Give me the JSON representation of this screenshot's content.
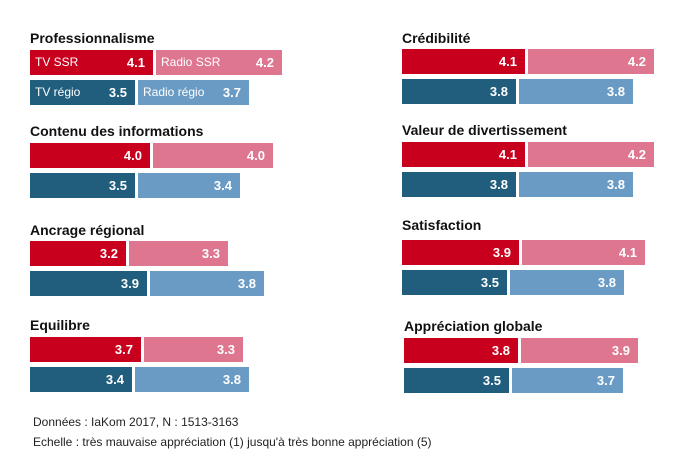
{
  "colors": {
    "tv_ssr": "#c8001e",
    "radio_ssr": "#de7690",
    "tv_regio": "#215e7e",
    "radio_regio": "#6a9bc5"
  },
  "chart_data": {
    "type": "bar",
    "scale": [
      1,
      5
    ],
    "legend": {
      "tv_ssr": "TV SSR",
      "radio_ssr": "Radio SSR",
      "tv_regio": "TV régio",
      "radio_regio": "Radio régio"
    },
    "panels": [
      {
        "title": "Professionnalisme",
        "tv_ssr": "4.1",
        "radio_ssr": "4.2",
        "tv_regio": "3.5",
        "radio_regio": "3.7"
      },
      {
        "title": "Contenu des informations",
        "tv_ssr": "4.0",
        "radio_ssr": "4.0",
        "tv_regio": "3.5",
        "radio_regio": "3.4"
      },
      {
        "title": "Ancrage régional",
        "tv_ssr": "3.2",
        "radio_ssr": "3.3",
        "tv_regio": "3.9",
        "radio_regio": "3.8"
      },
      {
        "title": "Equilibre",
        "tv_ssr": "3.7",
        "radio_ssr": "3.3",
        "tv_regio": "3.4",
        "radio_regio": "3.8"
      },
      {
        "title": "Crédibilité",
        "tv_ssr": "4.1",
        "radio_ssr": "4.2",
        "tv_regio": "3.8",
        "radio_regio": "3.8"
      },
      {
        "title": "Valeur de divertissement",
        "tv_ssr": "4.1",
        "radio_ssr": "4.2",
        "tv_regio": "3.8",
        "radio_regio": "3.8"
      },
      {
        "title": "Satisfaction",
        "tv_ssr": "3.9",
        "radio_ssr": "4.1",
        "tv_regio": "3.5",
        "radio_regio": "3.8"
      },
      {
        "title": "Appréciation globale",
        "tv_ssr": "3.8",
        "radio_ssr": "3.9",
        "tv_regio": "3.5",
        "radio_regio": "3.7"
      }
    ]
  },
  "footnote": {
    "source": "Données : IaKom 2017, N : 1513-3163",
    "scale": "Echelle : très mauvaise appréciation (1) jusqu'à très bonne appréciation (5)"
  }
}
